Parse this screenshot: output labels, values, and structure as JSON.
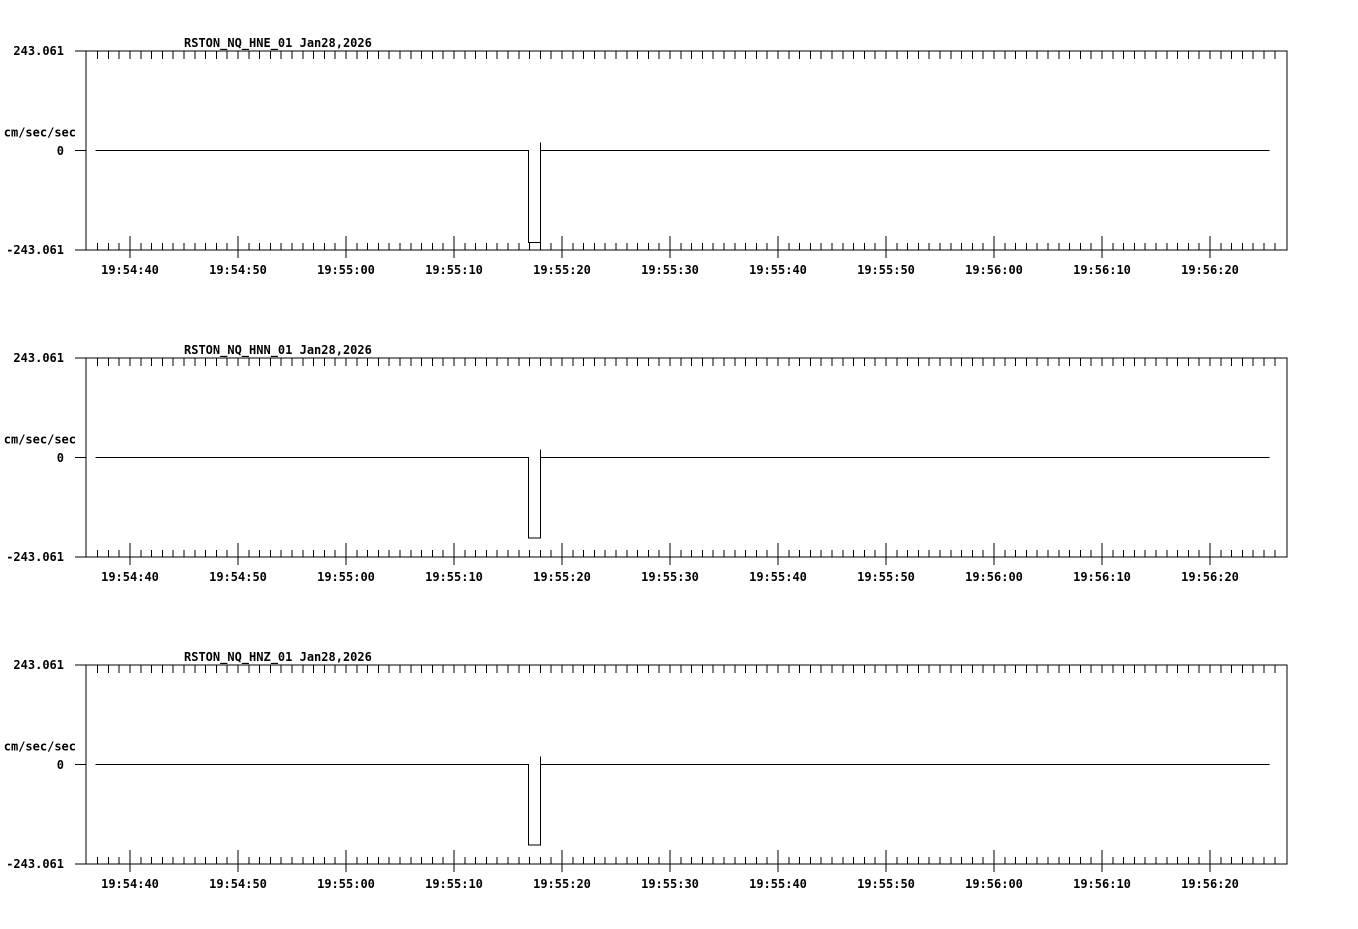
{
  "page": {
    "background_color": "#ffffff",
    "line_color": "#000000",
    "text_color": "#000000"
  },
  "chart_data": {
    "type": "line",
    "unit_label": "cm/sec/sec",
    "ylim": [
      -243.061,
      243.061
    ],
    "y_tick_labels": [
      "243.061",
      "0",
      "-243.061"
    ],
    "x_tick_labels": [
      "19:54:40",
      "19:54:50",
      "19:55:00",
      "19:55:10",
      "19:55:20",
      "19:55:30",
      "19:55:40",
      "19:55:50",
      "19:56:00",
      "19:56:10",
      "19:56:20"
    ],
    "x_major_interval_sec": 10,
    "x_minor_interval_sec": 1,
    "x_minor_ticks_sec_range": [
      -3,
      106
    ],
    "x_axis_span_sec": [
      -4.07,
      107.13
    ],
    "grid": "off",
    "legend": "none",
    "points_format": "[seconds relative to 19:54:40, amplitude in cm/sec/sec]",
    "panels": [
      {
        "title": "RSTON_NQ_HNE_01  Jan28,2026",
        "station": "RSTON",
        "network": "NQ",
        "channel": "HNE",
        "location": "01",
        "date": "Jan28,2026",
        "series": {
          "name": "RSTON_NQ_HNE_01",
          "points": [
            [
              -3.2,
              0
            ],
            [
              36.9,
              0
            ],
            [
              36.9,
              -225
            ],
            [
              38.0,
              -225
            ],
            [
              38.0,
              20
            ],
            [
              38.0,
              0
            ],
            [
              105.5,
              0
            ]
          ]
        }
      },
      {
        "title": "RSTON_NQ_HNN_01  Jan28,2026",
        "station": "RSTON",
        "network": "NQ",
        "channel": "HNN",
        "location": "01",
        "date": "Jan28,2026",
        "series": {
          "name": "RSTON_NQ_HNN_01",
          "points": [
            [
              -3.2,
              0
            ],
            [
              36.9,
              0
            ],
            [
              36.9,
              -197
            ],
            [
              38.0,
              -197
            ],
            [
              38.0,
              20
            ],
            [
              38.0,
              0
            ],
            [
              105.5,
              0
            ]
          ]
        }
      },
      {
        "title": "RSTON_NQ_HNZ_01  Jan28,2026",
        "station": "RSTON",
        "network": "NQ",
        "channel": "HNZ",
        "location": "01",
        "date": "Jan28,2026",
        "series": {
          "name": "RSTON_NQ_HNZ_01",
          "points": [
            [
              -3.2,
              0
            ],
            [
              36.9,
              0
            ],
            [
              36.9,
              -197
            ],
            [
              38.0,
              -197
            ],
            [
              38.0,
              20
            ],
            [
              38.0,
              0
            ],
            [
              105.5,
              0
            ]
          ]
        }
      }
    ]
  }
}
